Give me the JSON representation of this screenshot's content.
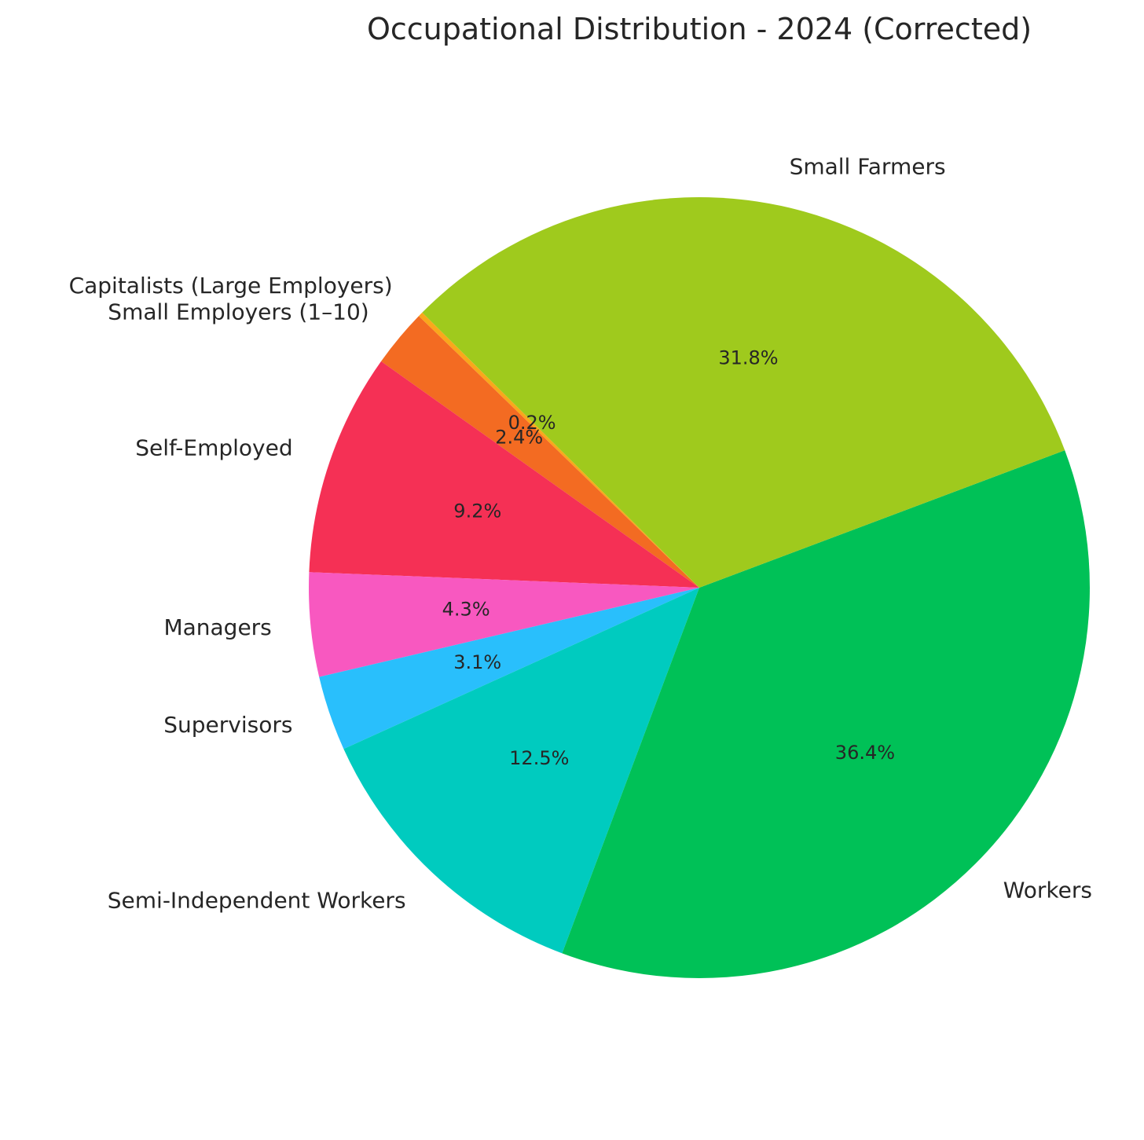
{
  "chart_data": {
    "type": "pie",
    "title": "Occupational Distribution - 2024 (Corrected)",
    "start_angle_deg": 135.2,
    "direction": "counterclockwise",
    "slices": [
      {
        "label": "Capitalists (Large Employers)",
        "value": 0.2,
        "pct_label": "0.2%",
        "color": "#f9a81c"
      },
      {
        "label": "Small Employers (1–10)",
        "value": 2.4,
        "pct_label": "2.4%",
        "color": "#f36b22"
      },
      {
        "label": "Self-Employed",
        "value": 9.2,
        "pct_label": "9.2%",
        "color": "#f53055"
      },
      {
        "label": "Managers",
        "value": 4.3,
        "pct_label": "4.3%",
        "color": "#f858c0"
      },
      {
        "label": "Supervisors",
        "value": 3.1,
        "pct_label": "3.1%",
        "color": "#29bffc"
      },
      {
        "label": "Semi-Independent Workers",
        "value": 12.5,
        "pct_label": "12.5%",
        "color": "#00cbbf"
      },
      {
        "label": "Workers",
        "value": 36.4,
        "pct_label": "36.4%",
        "color": "#00c157"
      },
      {
        "label": "Small Farmers",
        "value": 31.8,
        "pct_label": "31.8%",
        "color": "#9fca1d"
      }
    ]
  }
}
